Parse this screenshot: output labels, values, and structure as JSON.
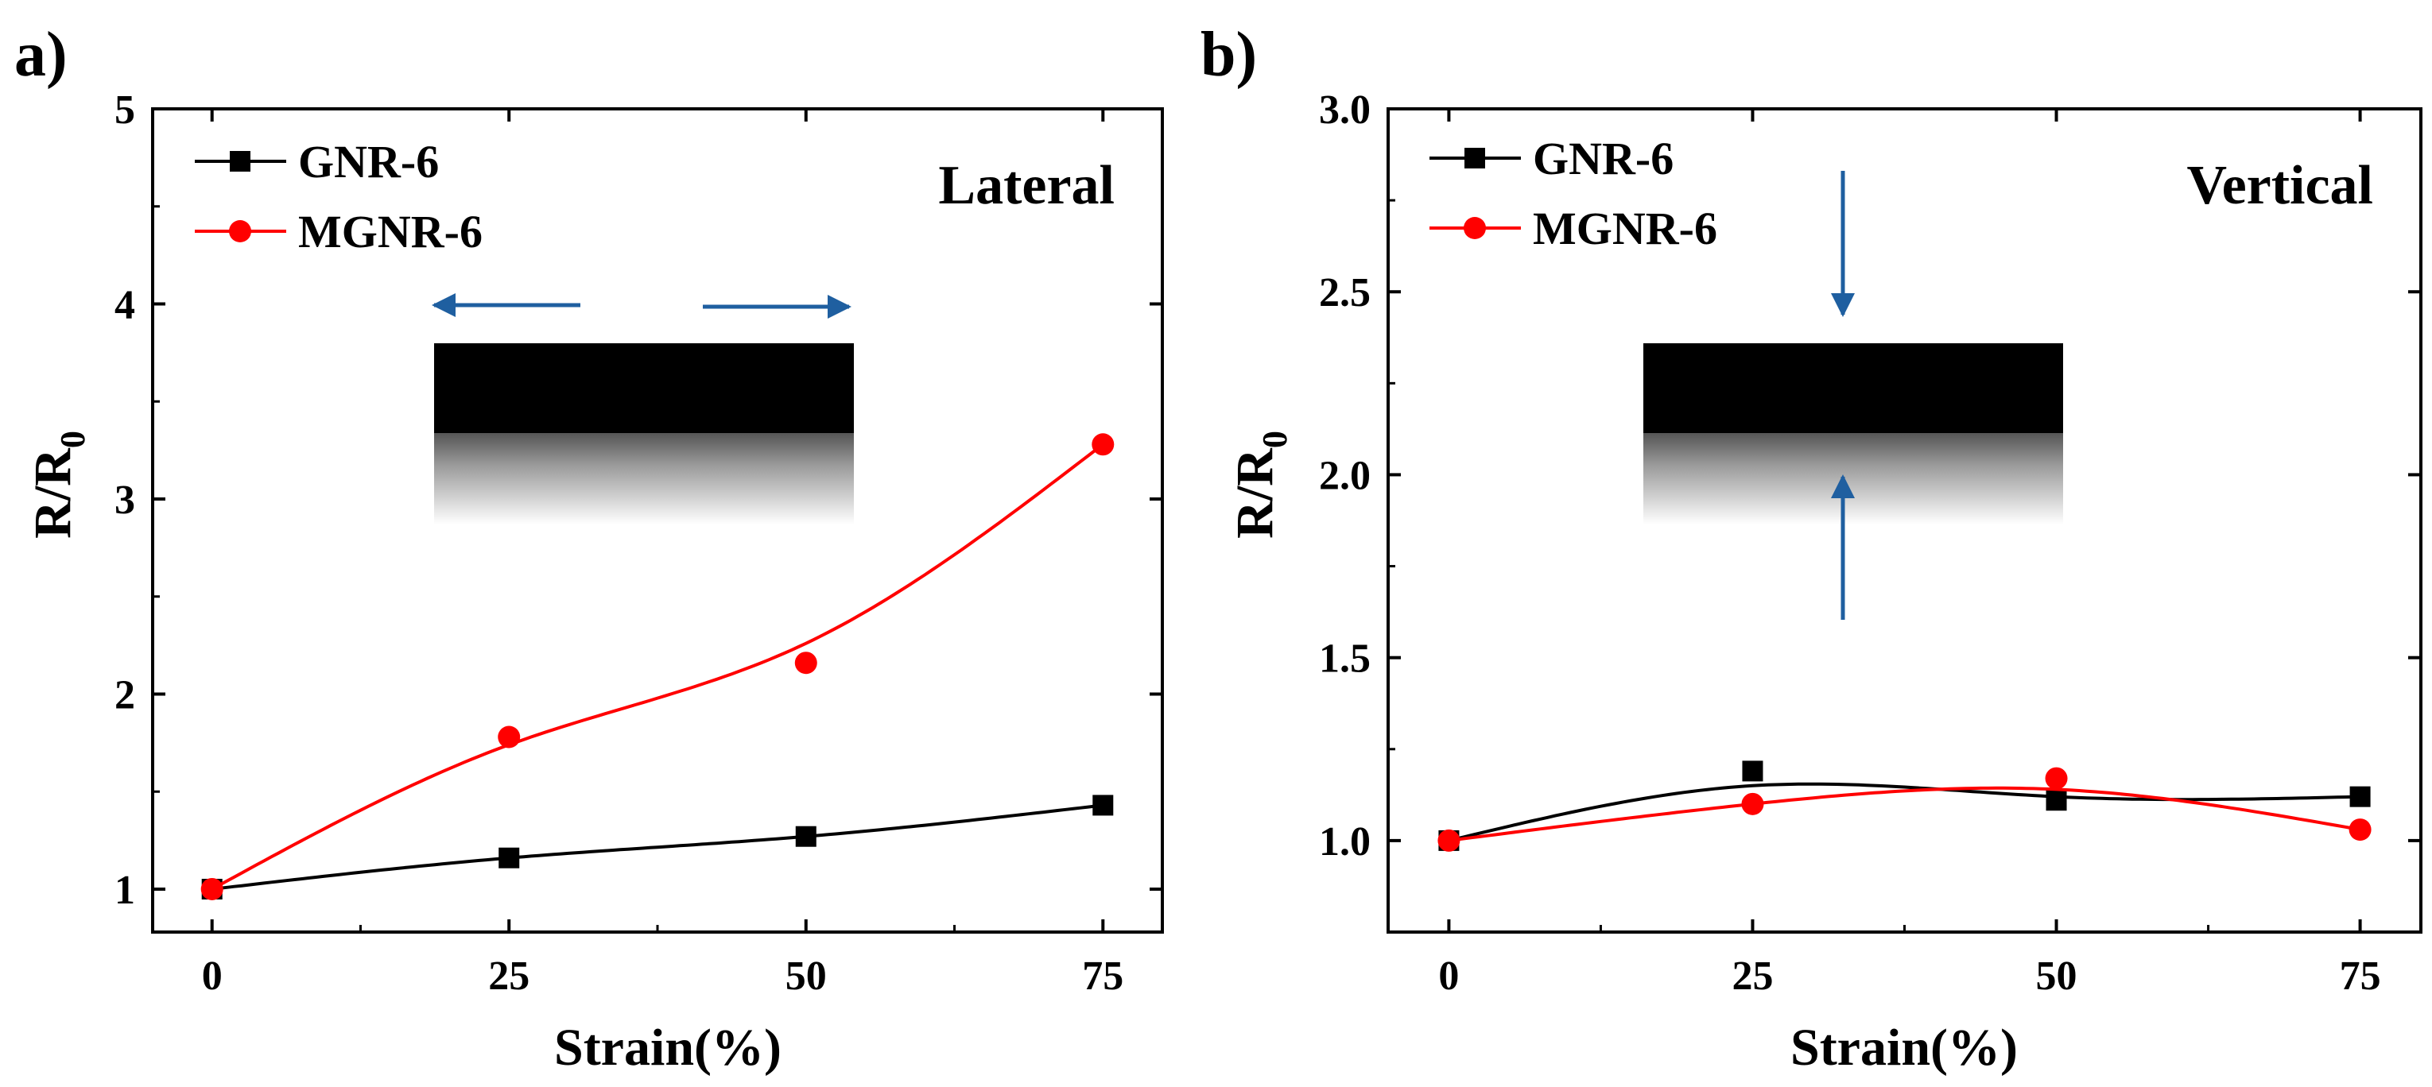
{
  "chart_data": [
    {
      "type": "line",
      "panel_label": "a)",
      "annotation": "Lateral",
      "xlabel": "Strain(%)",
      "ylabel_main": "R/R",
      "ylabel_sub": "0",
      "xlim": [
        -5,
        80
      ],
      "ylim": [
        0.78,
        5
      ],
      "xticks": [
        0,
        25,
        50,
        75
      ],
      "yticks": [
        1,
        2,
        3,
        4,
        5
      ],
      "ytick_labels": [
        "1",
        "2",
        "3",
        "4",
        "5"
      ],
      "grid": false,
      "legend_position": "top-left",
      "series": [
        {
          "name": "GNR-6",
          "color": "#000000",
          "marker": "square",
          "x": [
            0,
            25,
            50,
            75
          ],
          "y": [
            1.0,
            1.16,
            1.27,
            1.43
          ],
          "fit": [
            1.0,
            1.16,
            1.27,
            1.43
          ]
        },
        {
          "name": "MGNR-6",
          "color": "#ff0000",
          "marker": "circle",
          "x": [
            0,
            25,
            50,
            75
          ],
          "y": [
            1.0,
            1.78,
            2.16,
            3.28
          ],
          "fit": [
            1.0,
            1.74,
            2.26,
            3.28
          ]
        }
      ],
      "inset": {
        "description": "film with horizontal arrows",
        "arrow_color": "#1f5fa0",
        "direction": "horizontal"
      }
    },
    {
      "type": "line",
      "panel_label": "b)",
      "annotation": "Vertical",
      "xlabel": "Strain(%)",
      "ylabel_main": "R/R",
      "ylabel_sub": "0",
      "xlim": [
        -5,
        80
      ],
      "ylim": [
        0.75,
        3.0
      ],
      "xticks": [
        0,
        25,
        50,
        75
      ],
      "yticks": [
        1.0,
        1.5,
        2.0,
        2.5,
        3.0
      ],
      "ytick_labels": [
        "1.0",
        "1.5",
        "2.0",
        "2.5",
        "3.0"
      ],
      "grid": false,
      "legend_position": "top-left",
      "series": [
        {
          "name": "GNR-6",
          "color": "#000000",
          "marker": "square",
          "x": [
            0,
            25,
            50,
            75
          ],
          "y": [
            1.0,
            1.19,
            1.11,
            1.12
          ],
          "fit": [
            1.0,
            1.15,
            1.12,
            1.12
          ]
        },
        {
          "name": "MGNR-6",
          "color": "#ff0000",
          "marker": "circle",
          "x": [
            0,
            25,
            50,
            75
          ],
          "y": [
            1.0,
            1.1,
            1.17,
            1.03
          ],
          "fit": [
            1.0,
            1.1,
            1.14,
            1.03
          ]
        }
      ],
      "inset": {
        "description": "film with vertical arrows",
        "arrow_color": "#1f5fa0",
        "direction": "vertical"
      }
    }
  ]
}
